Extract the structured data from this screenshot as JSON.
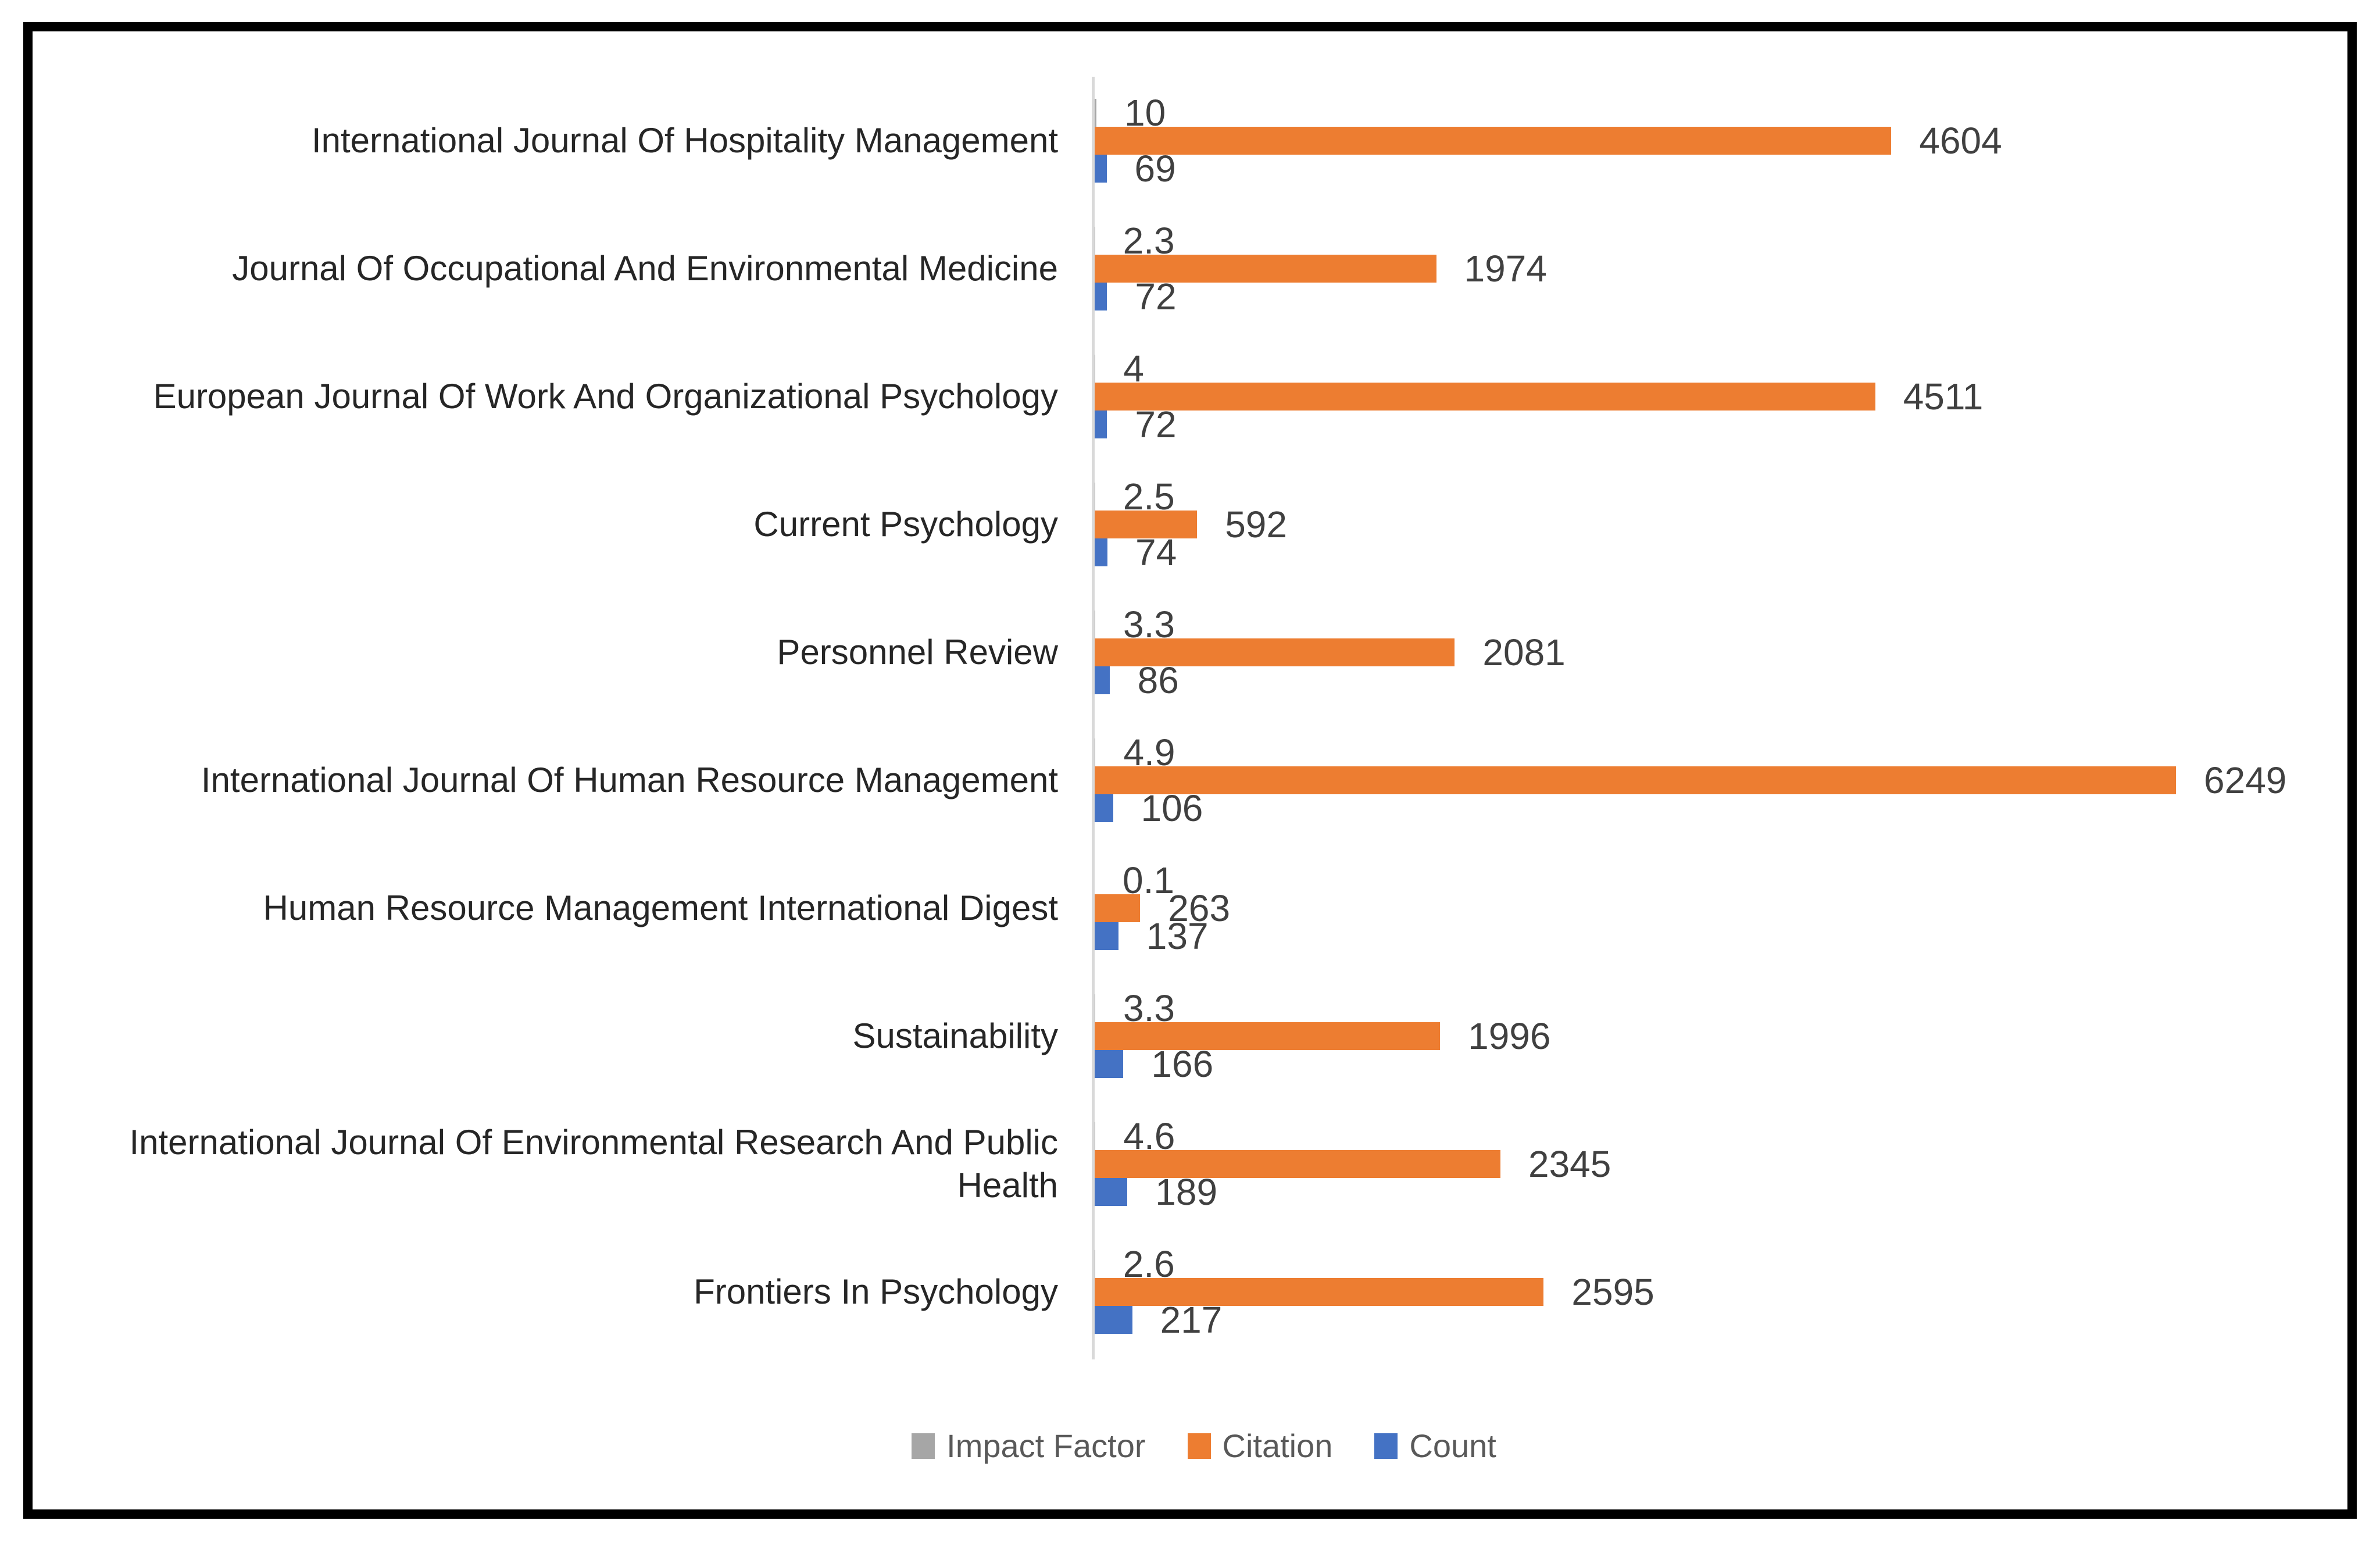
{
  "frame": {
    "border_color": "#000000",
    "background": "#ffffff"
  },
  "chart_data": {
    "type": "bar",
    "orientation": "horizontal",
    "title": "",
    "categories": [
      "International Journal Of Hospitality Management",
      "Journal Of Occupational And Environmental Medicine",
      "European Journal Of Work And Organizational Psychology",
      "Current Psychology",
      "Personnel Review",
      "International Journal Of Human Resource Management",
      "Human Resource Management International Digest",
      "Sustainability",
      "International Journal Of Environmental Research And Public Health",
      "Frontiers In Psychology"
    ],
    "series": [
      {
        "name": "Impact Factor",
        "color": "#A6A6A6",
        "values": [
          10,
          2.3,
          4,
          2.5,
          3.3,
          4.9,
          0.1,
          3.3,
          4.6,
          2.6
        ],
        "labels": [
          "10",
          "2.3",
          "4",
          "2.5",
          "3.3",
          "4.9",
          "0.1",
          "3.3",
          "4.6",
          "2.6"
        ]
      },
      {
        "name": "Citation",
        "color": "#ED7D31",
        "values": [
          4604,
          1974,
          4511,
          592,
          2081,
          6249,
          263,
          1996,
          2345,
          2595
        ],
        "labels": [
          "4604",
          "1974",
          "4511",
          "592",
          "2081",
          "6249",
          "263",
          "1996",
          "2345",
          "2595"
        ]
      },
      {
        "name": "Count",
        "color": "#4472C4",
        "values": [
          69,
          72,
          72,
          74,
          86,
          106,
          137,
          166,
          189,
          217
        ],
        "labels": [
          "69",
          "72",
          "72",
          "74",
          "86",
          "106",
          "137",
          "166",
          "189",
          "217"
        ]
      }
    ],
    "xlim": [
      0,
      6249
    ],
    "grid": false,
    "axis_line_color": "#D9D9D9",
    "data_label_color": "#404040",
    "category_label_color": "#262626",
    "legend_position": "bottom"
  },
  "legend": {
    "items": [
      {
        "label": "Impact Factor",
        "color": "#A6A6A6"
      },
      {
        "label": "Citation",
        "color": "#ED7D31"
      },
      {
        "label": "Count",
        "color": "#4472C4"
      }
    ]
  }
}
